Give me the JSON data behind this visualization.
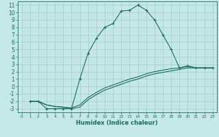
{
  "xlabel": "Humidex (Indice chaleur)",
  "bg_color": "#c5e8e5",
  "grid_color": "#9eccc8",
  "line_color": "#1a6b5a",
  "xlim": [
    -0.5,
    23.5
  ],
  "ylim": [
    -3.5,
    11.5
  ],
  "xticks": [
    0,
    1,
    2,
    3,
    4,
    5,
    6,
    7,
    8,
    9,
    10,
    11,
    12,
    13,
    14,
    15,
    16,
    17,
    18,
    19,
    20,
    21,
    22,
    23
  ],
  "yticks": [
    -3,
    -2,
    -1,
    0,
    1,
    2,
    3,
    4,
    5,
    6,
    7,
    8,
    9,
    10,
    11
  ],
  "series1_x": [
    1,
    2,
    3,
    4,
    5,
    6,
    7,
    8,
    9,
    10,
    11,
    12,
    13,
    14,
    15,
    16,
    17,
    18,
    19,
    20,
    21,
    22,
    23
  ],
  "series1_y": [
    -2,
    -2,
    -3,
    -3,
    -3,
    -3,
    1.0,
    4.5,
    6.5,
    8.0,
    8.5,
    10.2,
    10.3,
    11.0,
    10.3,
    9.0,
    7.0,
    5.0,
    2.5,
    2.8,
    2.5,
    2.5,
    2.5
  ],
  "series2_x": [
    1,
    2,
    3,
    4,
    5,
    6,
    7,
    8,
    9,
    10,
    11,
    12,
    13,
    14,
    15,
    16,
    17,
    18,
    19,
    20,
    21,
    22,
    23
  ],
  "series2_y": [
    -2,
    -2,
    -2.5,
    -2.7,
    -2.8,
    -2.9,
    -2.5,
    -1.5,
    -0.8,
    -0.2,
    0.2,
    0.6,
    1.0,
    1.3,
    1.7,
    2.0,
    2.2,
    2.4,
    2.5,
    2.7,
    2.5,
    2.5,
    2.5
  ],
  "series3_x": [
    1,
    2,
    3,
    4,
    5,
    6,
    7,
    8,
    9,
    10,
    11,
    12,
    13,
    14,
    15,
    16,
    17,
    18,
    19,
    20,
    21,
    22,
    23
  ],
  "series3_y": [
    -2,
    -2,
    -2.5,
    -2.7,
    -2.8,
    -3.0,
    -2.8,
    -1.8,
    -1.1,
    -0.5,
    -0.1,
    0.3,
    0.7,
    1.0,
    1.4,
    1.7,
    1.9,
    2.1,
    2.3,
    2.5,
    2.5,
    2.5,
    2.5
  ],
  "xlabel_fontsize": 6.0,
  "tick_fontsize_x": 4.2,
  "tick_fontsize_y": 5.5
}
